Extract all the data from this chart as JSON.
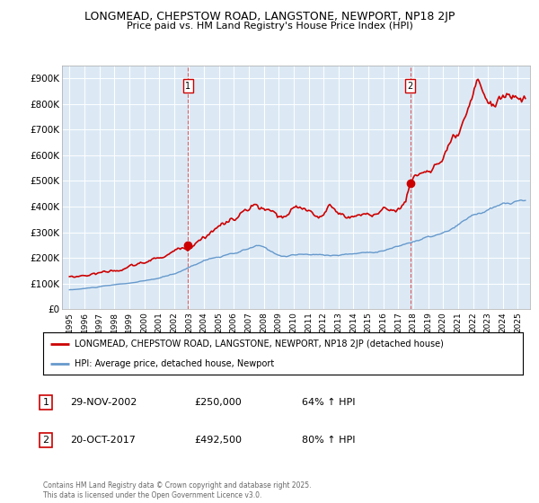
{
  "title1": "LONGMEAD, CHEPSTOW ROAD, LANGSTONE, NEWPORT, NP18 2JP",
  "title2": "Price paid vs. HM Land Registry's House Price Index (HPI)",
  "legend_line1": "LONGMEAD, CHEPSTOW ROAD, LANGSTONE, NEWPORT, NP18 2JP (detached house)",
  "legend_line2": "HPI: Average price, detached house, Newport",
  "transaction1_label": "1",
  "transaction1_date": "29-NOV-2002",
  "transaction1_price": "£250,000",
  "transaction1_hpi": "64% ↑ HPI",
  "transaction2_label": "2",
  "transaction2_date": "20-OCT-2017",
  "transaction2_price": "£492,500",
  "transaction2_hpi": "80% ↑ HPI",
  "copyright": "Contains HM Land Registry data © Crown copyright and database right 2025.\nThis data is licensed under the Open Government Licence v3.0.",
  "plot_bg_color": "#dce9f5",
  "red_color": "#cc0000",
  "blue_color": "#6699cc",
  "vline1_x": 2002.917,
  "vline2_x": 2017.8,
  "t1_price": 250000,
  "t2_price": 492500,
  "ylim": [
    0,
    950000
  ],
  "yticks": [
    0,
    100000,
    200000,
    300000,
    400000,
    500000,
    600000,
    700000,
    800000,
    900000
  ],
  "ytick_labels": [
    "£0",
    "£100K",
    "£200K",
    "£300K",
    "£400K",
    "£500K",
    "£600K",
    "£700K",
    "£800K",
    "£900K"
  ],
  "xlim": [
    1994.5,
    2025.8
  ]
}
